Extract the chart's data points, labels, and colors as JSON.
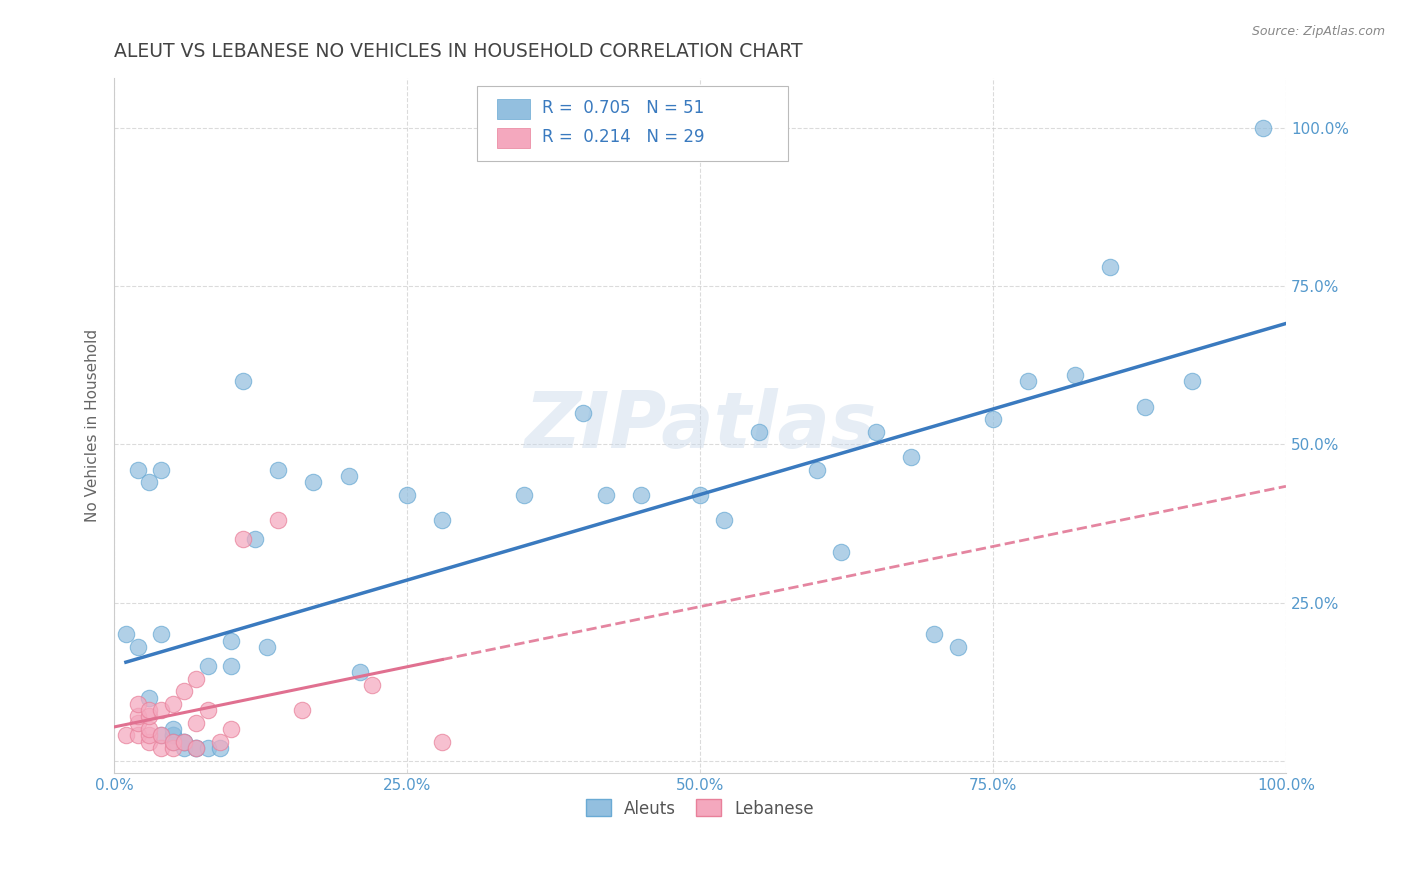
{
  "title": "ALEUT VS LEBANESE NO VEHICLES IN HOUSEHOLD CORRELATION CHART",
  "source": "Source: ZipAtlas.com",
  "ylabel": "No Vehicles in Household",
  "xlim": [
    0.0,
    1.0
  ],
  "ylim": [
    -0.02,
    1.08
  ],
  "aleut_color": "#93bfdf",
  "aleut_edge": "#6aaad4",
  "lebanese_color": "#f4a8be",
  "lebanese_edge": "#e8809a",
  "trendline_aleut_color": "#3a7abf",
  "trendline_lebanese_color": "#e07090",
  "background_color": "#ffffff",
  "grid_color": "#cccccc",
  "watermark": "ZIPatlas",
  "aleut_x": [
    0.01,
    0.02,
    0.02,
    0.03,
    0.03,
    0.04,
    0.04,
    0.04,
    0.05,
    0.05,
    0.05,
    0.05,
    0.06,
    0.06,
    0.06,
    0.07,
    0.07,
    0.08,
    0.08,
    0.09,
    0.1,
    0.1,
    0.11,
    0.12,
    0.13,
    0.14,
    0.17,
    0.2,
    0.21,
    0.25,
    0.28,
    0.35,
    0.4,
    0.42,
    0.45,
    0.5,
    0.52,
    0.55,
    0.6,
    0.62,
    0.65,
    0.68,
    0.7,
    0.72,
    0.75,
    0.78,
    0.82,
    0.85,
    0.88,
    0.92,
    0.98
  ],
  "aleut_y": [
    0.2,
    0.18,
    0.46,
    0.1,
    0.44,
    0.2,
    0.46,
    0.04,
    0.04,
    0.04,
    0.05,
    0.03,
    0.02,
    0.03,
    0.03,
    0.02,
    0.02,
    0.02,
    0.15,
    0.02,
    0.15,
    0.19,
    0.6,
    0.35,
    0.18,
    0.46,
    0.44,
    0.45,
    0.14,
    0.42,
    0.38,
    0.42,
    0.55,
    0.42,
    0.42,
    0.42,
    0.38,
    0.52,
    0.46,
    0.33,
    0.52,
    0.48,
    0.2,
    0.18,
    0.54,
    0.6,
    0.61,
    0.78,
    0.56,
    0.6,
    1.0
  ],
  "lebanese_x": [
    0.01,
    0.02,
    0.02,
    0.02,
    0.02,
    0.03,
    0.03,
    0.03,
    0.03,
    0.03,
    0.04,
    0.04,
    0.04,
    0.05,
    0.05,
    0.05,
    0.06,
    0.06,
    0.07,
    0.07,
    0.07,
    0.08,
    0.09,
    0.1,
    0.11,
    0.14,
    0.16,
    0.22,
    0.28
  ],
  "lebanese_y": [
    0.04,
    0.04,
    0.06,
    0.07,
    0.09,
    0.03,
    0.04,
    0.05,
    0.07,
    0.08,
    0.02,
    0.04,
    0.08,
    0.02,
    0.03,
    0.09,
    0.03,
    0.11,
    0.02,
    0.06,
    0.13,
    0.08,
    0.03,
    0.05,
    0.35,
    0.38,
    0.08,
    0.12,
    0.03
  ]
}
